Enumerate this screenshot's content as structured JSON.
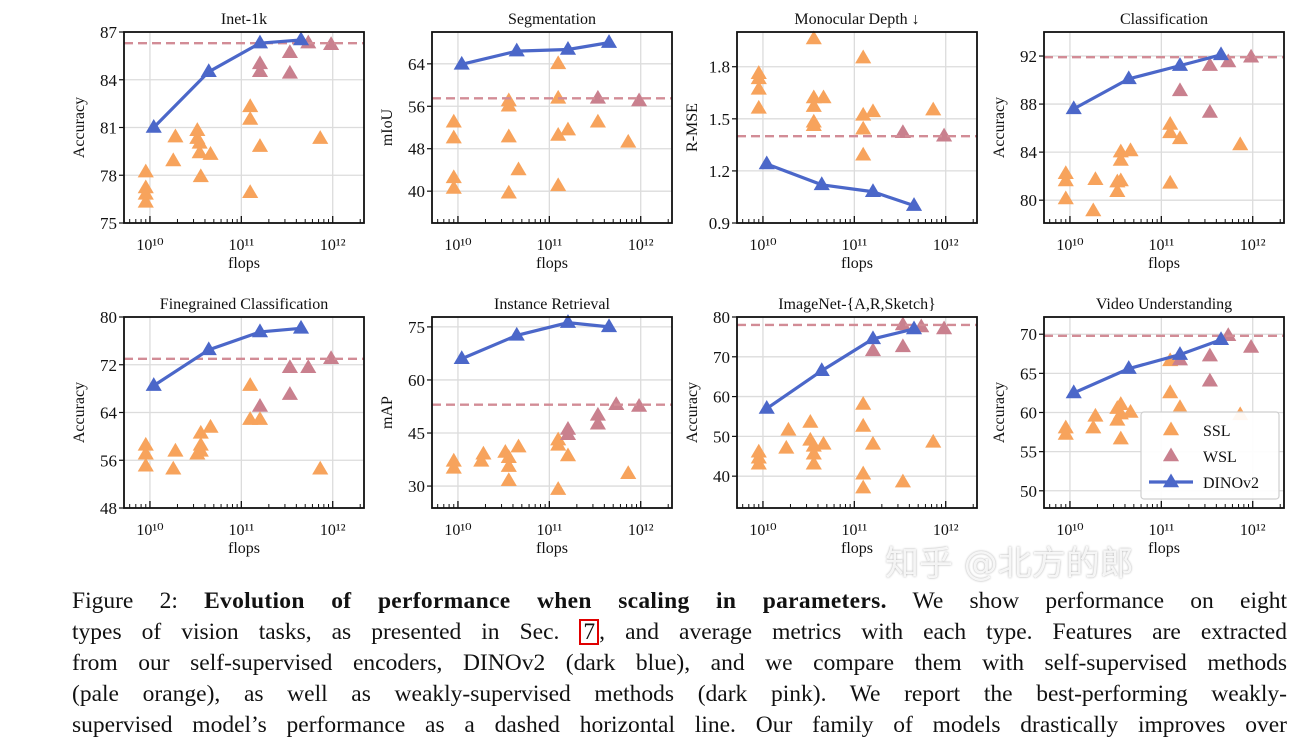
{
  "colors": {
    "ssl": "#f7a35c",
    "wsl": "#c9808e",
    "dinov2": "#4b67c9",
    "dashed": "#d28c96",
    "grid": "#dcdcdc"
  },
  "x_axis": {
    "label": "flops",
    "scale": "log",
    "xlim": [
      5200000000.0,
      2200000000000.0
    ],
    "tick_values": [
      10000000000.0,
      100000000000.0,
      1000000000000.0
    ],
    "tick_labels": [
      "10¹⁰",
      "10¹¹",
      "10¹²"
    ]
  },
  "legend": {
    "placement": "lower-right",
    "entries": [
      "SSL",
      "WSL",
      "DINOv2"
    ]
  },
  "chart_data": [
    {
      "type": "scatter",
      "title": "Inet-1k",
      "ylabel": "Accuracy",
      "ylim": [
        75,
        87
      ],
      "yticks": [
        75,
        78,
        81,
        84,
        87
      ],
      "grid": true,
      "wsl_best": 86.3,
      "dinov2": {
        "x": [
          11000000000.0,
          44000000000.0,
          160000000000.0,
          450000000000.0
        ],
        "y": [
          81.0,
          84.5,
          86.3,
          86.5
        ]
      },
      "ssl": [
        [
          9000000000.0,
          78.2
        ],
        [
          9000000000.0,
          77.2
        ],
        [
          9000000000.0,
          76.8
        ],
        [
          9000000000.0,
          76.3
        ],
        [
          19000000000.0,
          80.4
        ],
        [
          18000000000.0,
          78.9
        ],
        [
          33000000000.0,
          80.8
        ],
        [
          33000000000.0,
          80.3
        ],
        [
          35000000000.0,
          80.0
        ],
        [
          35000000000.0,
          79.4
        ],
        [
          36000000000.0,
          77.9
        ],
        [
          46000000000.0,
          79.3
        ],
        [
          125000000000.0,
          82.3
        ],
        [
          125000000000.0,
          81.5
        ],
        [
          125000000000.0,
          76.9
        ],
        [
          160000000000.0,
          79.8
        ],
        [
          730000000000.0,
          80.3
        ]
      ],
      "wsl": [
        [
          160000000000.0,
          85.0
        ],
        [
          160000000000.0,
          84.5
        ],
        [
          340000000000.0,
          85.7
        ],
        [
          340000000000.0,
          84.4
        ],
        [
          540000000000.0,
          86.3
        ],
        [
          960000000000.0,
          86.2
        ]
      ]
    },
    {
      "type": "scatter",
      "title": "Segmentation",
      "ylabel": "mIoU",
      "ylim": [
        34,
        70
      ],
      "yticks": [
        40,
        48,
        56,
        64
      ],
      "grid": true,
      "wsl_best": 57.5,
      "dinov2": {
        "x": [
          11000000000.0,
          44000000000.0,
          160000000000.0,
          450000000000.0
        ],
        "y": [
          63.9,
          66.4,
          66.7,
          68.0
        ]
      },
      "ssl": [
        [
          9000000000.0,
          53
        ],
        [
          9000000000.0,
          50
        ],
        [
          9000000000.0,
          42.5
        ],
        [
          9000000000.0,
          40.5
        ],
        [
          36000000000.0,
          57
        ],
        [
          36000000000.0,
          56
        ],
        [
          36000000000.0,
          50.2
        ],
        [
          36000000000.0,
          39.6
        ],
        [
          46000000000.0,
          44
        ],
        [
          125000000000.0,
          64
        ],
        [
          125000000000.0,
          57.5
        ],
        [
          125000000000.0,
          50.5
        ],
        [
          125000000000.0,
          41
        ],
        [
          160000000000.0,
          51.5
        ],
        [
          340000000000.0,
          53
        ],
        [
          730000000000.0,
          49.2
        ]
      ],
      "wsl": [
        [
          340000000000.0,
          57.5
        ],
        [
          960000000000.0,
          57
        ]
      ]
    },
    {
      "type": "scatter",
      "title": "Monocular Depth ↓",
      "ylabel": "R-MSE",
      "ylim": [
        0.9,
        2.0
      ],
      "yticks": [
        0.9,
        1.2,
        1.5,
        1.8
      ],
      "grid": true,
      "wsl_best": 1.4,
      "dinov2": {
        "x": [
          11000000000.0,
          44000000000.0,
          160000000000.0,
          450000000000.0
        ],
        "y": [
          1.24,
          1.12,
          1.08,
          1.0
        ]
      },
      "ssl": [
        [
          9000000000.0,
          1.76
        ],
        [
          9000000000.0,
          1.73
        ],
        [
          9000000000.0,
          1.67
        ],
        [
          9000000000.0,
          1.56
        ],
        [
          36000000000.0,
          1.96
        ],
        [
          36000000000.0,
          1.62
        ],
        [
          36000000000.0,
          1.57
        ],
        [
          36000000000.0,
          1.48
        ],
        [
          36000000000.0,
          1.46
        ],
        [
          46000000000.0,
          1.62
        ],
        [
          125000000000.0,
          1.85
        ],
        [
          125000000000.0,
          1.52
        ],
        [
          125000000000.0,
          1.44
        ],
        [
          125000000000.0,
          1.29
        ],
        [
          160000000000.0,
          1.54
        ],
        [
          730000000000.0,
          1.55
        ]
      ],
      "wsl": [
        [
          340000000000.0,
          1.42
        ],
        [
          960000000000.0,
          1.4
        ]
      ]
    },
    {
      "type": "scatter",
      "title": "Classification",
      "ylabel": "Accuracy",
      "ylim": [
        78.1,
        94
      ],
      "yticks": [
        80,
        84,
        88,
        92
      ],
      "grid": true,
      "wsl_best": 91.9,
      "dinov2": {
        "x": [
          11000000000.0,
          44000000000.0,
          160000000000.0,
          450000000000.0
        ],
        "y": [
          87.6,
          90.1,
          91.2,
          92.1
        ]
      },
      "ssl": [
        [
          9000000000.0,
          82.2
        ],
        [
          9000000000.0,
          81.6
        ],
        [
          9000000000.0,
          80.1
        ],
        [
          19000000000.0,
          81.7
        ],
        [
          18000000000.0,
          79.1
        ],
        [
          33000000000.0,
          80.7
        ],
        [
          33000000000.0,
          81.5
        ],
        [
          36000000000.0,
          84
        ],
        [
          36000000000.0,
          83.3
        ],
        [
          36000000000.0,
          81.6
        ],
        [
          46000000000.0,
          84.1
        ],
        [
          125000000000.0,
          86.3
        ],
        [
          125000000000.0,
          85.6
        ],
        [
          125000000000.0,
          81.4
        ],
        [
          160000000000.0,
          85.1
        ],
        [
          730000000000.0,
          84.6
        ]
      ],
      "wsl": [
        [
          160000000000.0,
          89.1
        ],
        [
          340000000000.0,
          91.2
        ],
        [
          340000000000.0,
          87.3
        ],
        [
          540000000000.0,
          91.5
        ],
        [
          960000000000.0,
          91.9
        ]
      ]
    },
    {
      "type": "scatter",
      "title": "Finegrained Classification",
      "ylabel": "Accuracy",
      "ylim": [
        48,
        80
      ],
      "yticks": [
        48,
        56,
        64,
        72,
        80
      ],
      "grid": true,
      "wsl_best": 73,
      "dinov2": {
        "x": [
          11000000000.0,
          44000000000.0,
          160000000000.0,
          450000000000.0
        ],
        "y": [
          68.5,
          74.5,
          77.5,
          78.1
        ]
      },
      "ssl": [
        [
          9000000000.0,
          58.5
        ],
        [
          9000000000.0,
          57
        ],
        [
          9000000000.0,
          55
        ],
        [
          19000000000.0,
          57.5
        ],
        [
          18000000000.0,
          54.5
        ],
        [
          33000000000.0,
          57
        ],
        [
          36000000000.0,
          60.5
        ],
        [
          36000000000.0,
          58.5
        ],
        [
          36000000000.0,
          57.5
        ],
        [
          46000000000.0,
          61.5
        ],
        [
          125000000000.0,
          68.5
        ],
        [
          125000000000.0,
          62.8
        ],
        [
          160000000000.0,
          62.8
        ],
        [
          730000000000.0,
          54.5
        ]
      ],
      "wsl": [
        [
          160000000000.0,
          65
        ],
        [
          340000000000.0,
          71.5
        ],
        [
          340000000000.0,
          67
        ],
        [
          540000000000.0,
          71.5
        ],
        [
          960000000000.0,
          73
        ]
      ]
    },
    {
      "type": "scatter",
      "title": "Instance Retrieval",
      "ylabel": "mAP",
      "ylim": [
        23.8,
        77.8
      ],
      "yticks": [
        30,
        45,
        60,
        75
      ],
      "grid": true,
      "wsl_best": 53,
      "dinov2": {
        "x": [
          11000000000.0,
          44000000000.0,
          160000000000.0,
          450000000000.0
        ],
        "y": [
          66,
          72.6,
          76.2,
          75
        ]
      },
      "ssl": [
        [
          9000000000.0,
          37
        ],
        [
          9000000000.0,
          35
        ],
        [
          19000000000.0,
          39
        ],
        [
          18000000000.0,
          37
        ],
        [
          33000000000.0,
          39.5
        ],
        [
          36000000000.0,
          38
        ],
        [
          36000000000.0,
          35.5
        ],
        [
          36000000000.0,
          31.5
        ],
        [
          46000000000.0,
          41
        ],
        [
          125000000000.0,
          43
        ],
        [
          125000000000.0,
          41.5
        ],
        [
          125000000000.0,
          29
        ],
        [
          160000000000.0,
          38.5
        ],
        [
          730000000000.0,
          33.5
        ]
      ],
      "wsl": [
        [
          160000000000.0,
          46
        ],
        [
          160000000000.0,
          44.5
        ],
        [
          340000000000.0,
          50
        ],
        [
          340000000000.0,
          47.5
        ],
        [
          540000000000.0,
          53
        ],
        [
          960000000000.0,
          52.5
        ]
      ]
    },
    {
      "type": "scatter",
      "title": "ImageNet-{A,R,Sketch}",
      "ylabel": "Accuracy",
      "ylim": [
        32,
        80
      ],
      "yticks": [
        40,
        50,
        60,
        70,
        80
      ],
      "grid": true,
      "wsl_best": 78,
      "dinov2": {
        "x": [
          11000000000.0,
          44000000000.0,
          160000000000.0,
          450000000000.0
        ],
        "y": [
          57,
          66.5,
          74.5,
          77
        ]
      },
      "ssl": [
        [
          9000000000.0,
          46
        ],
        [
          9000000000.0,
          44.5
        ],
        [
          9000000000.0,
          43
        ],
        [
          19000000000.0,
          51.5
        ],
        [
          18000000000.0,
          47
        ],
        [
          33000000000.0,
          53.5
        ],
        [
          33000000000.0,
          49
        ],
        [
          36000000000.0,
          47.5
        ],
        [
          36000000000.0,
          45.5
        ],
        [
          36000000000.0,
          43
        ],
        [
          46000000000.0,
          48
        ],
        [
          125000000000.0,
          58
        ],
        [
          125000000000.0,
          52.5
        ],
        [
          125000000000.0,
          40.5
        ],
        [
          125000000000.0,
          37
        ],
        [
          160000000000.0,
          48
        ],
        [
          340000000000.0,
          38.5
        ],
        [
          730000000000.0,
          48.5
        ]
      ],
      "wsl": [
        [
          160000000000.0,
          71.5
        ],
        [
          340000000000.0,
          78
        ],
        [
          340000000000.0,
          72.5
        ],
        [
          540000000000.0,
          77.5
        ],
        [
          960000000000.0,
          77
        ]
      ]
    },
    {
      "type": "scatter",
      "title": "Video Understanding",
      "ylabel": "Accuracy",
      "ylim": [
        47.8,
        72.2
      ],
      "yticks": [
        50,
        55,
        60,
        65,
        70
      ],
      "grid": true,
      "wsl_best": 69.8,
      "dinov2": {
        "x": [
          11000000000.0,
          44000000000.0,
          160000000000.0,
          450000000000.0
        ],
        "y": [
          62.5,
          65.6,
          67.4,
          69.3
        ]
      },
      "ssl": [
        [
          9000000000.0,
          58
        ],
        [
          9000000000.0,
          57.2
        ],
        [
          19000000000.0,
          59.5
        ],
        [
          18000000000.0,
          58
        ],
        [
          33000000000.0,
          59
        ],
        [
          33000000000.0,
          60.5
        ],
        [
          36000000000.0,
          61
        ],
        [
          36000000000.0,
          59.8
        ],
        [
          36000000000.0,
          56.6
        ],
        [
          46000000000.0,
          60
        ],
        [
          125000000000.0,
          66.6
        ],
        [
          125000000000.0,
          62.5
        ],
        [
          160000000000.0,
          60.6
        ],
        [
          730000000000.0,
          59.7
        ]
      ],
      "wsl": [
        [
          160000000000.0,
          66.7
        ],
        [
          340000000000.0,
          67.2
        ],
        [
          340000000000.0,
          64
        ],
        [
          540000000000.0,
          69.8
        ],
        [
          960000000000.0,
          68.3
        ]
      ],
      "has_legend": true
    }
  ],
  "caption": {
    "line1": {
      "prefix": "Figure 2: ",
      "bold": "Evolution of performance when scaling in parameters.",
      "rest": " We show performance on eight"
    },
    "line2": {
      "prefix": "types of vision tasks, as presented in Sec. ",
      "ref": "7",
      "rest": ", and average metrics with each type. Features are extracted"
    },
    "line3": "from our self-supervised encoders, DINOv2 (dark blue), and we compare them with self-supervised methods",
    "line4": "(pale orange), as well as weakly-supervised methods (dark pink). We report the best-performing weakly-",
    "line5": "supervised model’s performance as a dashed horizontal line. Our family of models drastically improves over"
  },
  "watermark": "知乎 @北方的郎"
}
